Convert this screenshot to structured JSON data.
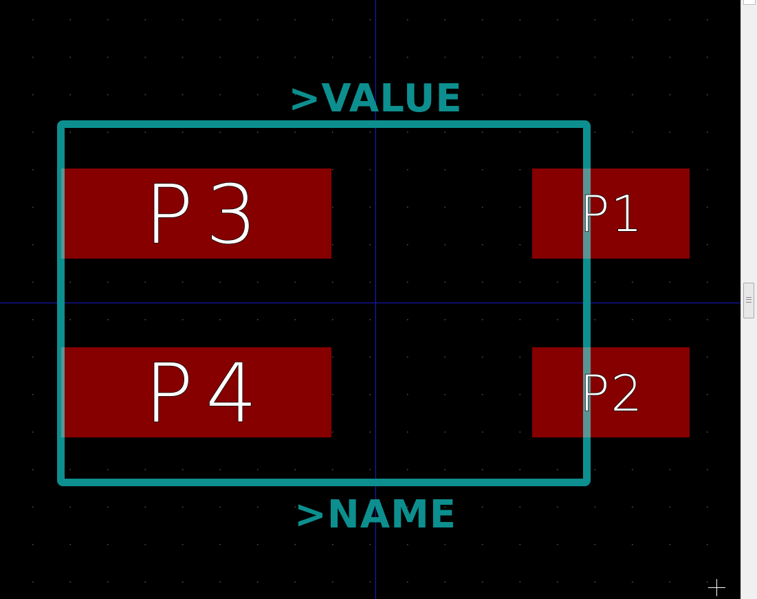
{
  "editor": {
    "background_color": "#000000",
    "grid_color": "#4a4a4a",
    "axis_color": "#1c1cc8"
  },
  "footprint": {
    "value_label": ">VALUE",
    "name_label": ">NAME",
    "courtyard_color": "#0d8f8f",
    "pad_color": "#870000",
    "pads": [
      {
        "name": "P3"
      },
      {
        "name": "P4"
      },
      {
        "name": "P1"
      },
      {
        "name": "P2"
      }
    ]
  },
  "cursor": {
    "icon": "crosshair-cursor-icon"
  },
  "scrollbar": {
    "thumb_icon": "grip-lines-icon"
  }
}
